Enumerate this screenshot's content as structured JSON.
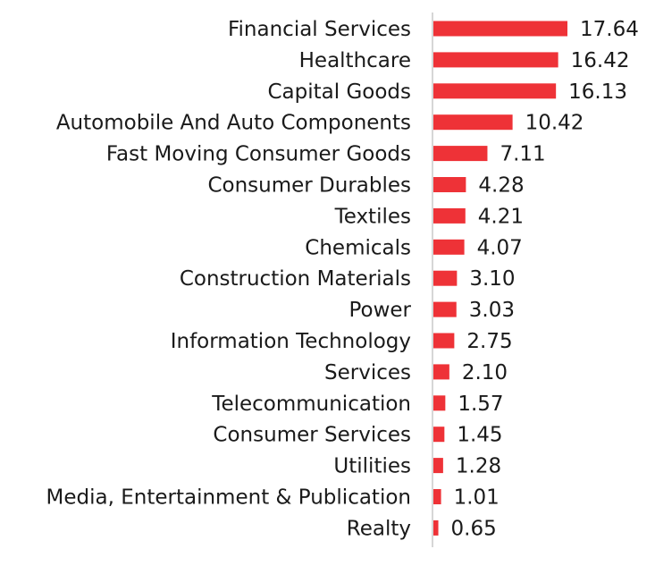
{
  "chart_data": {
    "type": "bar",
    "orientation": "horizontal",
    "title": "",
    "xlabel": "",
    "ylabel": "",
    "categories": [
      "Financial Services",
      "Healthcare",
      "Capital Goods",
      "Automobile And Auto Components",
      "Fast Moving Consumer Goods",
      "Consumer Durables",
      "Textiles",
      "Chemicals",
      "Construction Materials",
      "Power",
      "Information Technology",
      "Services",
      "Telecommunication",
      "Consumer Services",
      "Utilities",
      "Media, Entertainment & Publication",
      "Realty"
    ],
    "values": [
      17.64,
      16.42,
      16.13,
      10.42,
      7.11,
      4.28,
      4.21,
      4.07,
      3.1,
      3.03,
      2.75,
      2.1,
      1.57,
      1.45,
      1.28,
      1.01,
      0.65
    ],
    "value_labels": [
      "17.64",
      "16.42",
      "16.13",
      "10.42",
      "7.11",
      "4.28",
      "4.21",
      "4.07",
      "3.10",
      "3.03",
      "2.75",
      "2.10",
      "1.57",
      "1.45",
      "1.28",
      "1.01",
      "0.65"
    ],
    "xlim": [
      0,
      18
    ],
    "grid": false,
    "legend": "none",
    "colors": {
      "bar": "#ee3237",
      "axis": "#c8c8c8"
    }
  }
}
